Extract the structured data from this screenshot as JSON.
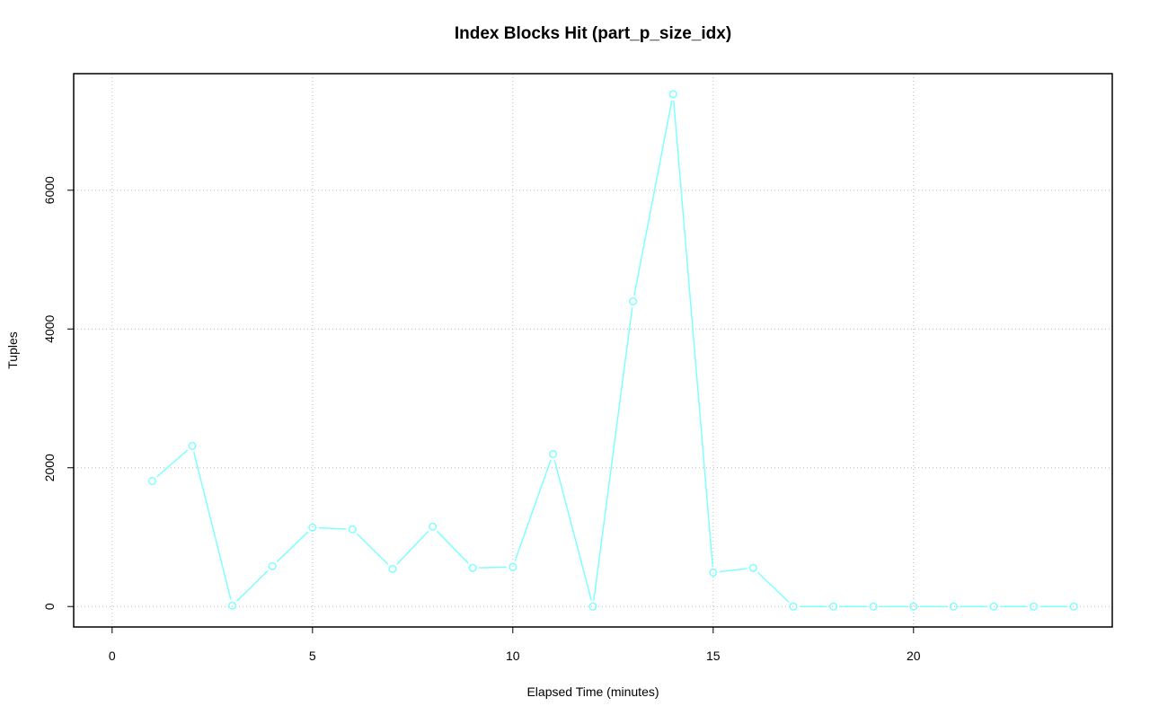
{
  "chart_data": {
    "type": "line",
    "title": "Index Blocks Hit (part_p_size_idx)",
    "x_label": "Elapsed Time (minutes)",
    "y_label": "Tuples",
    "x": [
      1,
      2,
      3,
      4,
      5,
      6,
      7,
      8,
      9,
      10,
      11,
      12,
      13,
      14,
      15,
      16,
      17,
      18,
      19,
      20,
      21,
      22,
      23,
      24
    ],
    "series": [
      {
        "name": "part_p_size_idx",
        "color": "#80ffff",
        "values": [
          1810,
          2315,
          13,
          582,
          1138,
          1112,
          543,
          1151,
          556,
          569,
          2198,
          0,
          4397,
          7384,
          491,
          556,
          0,
          0,
          0,
          0,
          0,
          0,
          0,
          0
        ]
      }
    ],
    "xlim": [
      -0.96,
      24.96
    ],
    "ylim": [
      -295,
      7680
    ],
    "xticks": [
      0,
      5,
      10,
      15,
      20
    ],
    "yticks": [
      0,
      2000,
      4000,
      6000
    ],
    "grid": true
  }
}
